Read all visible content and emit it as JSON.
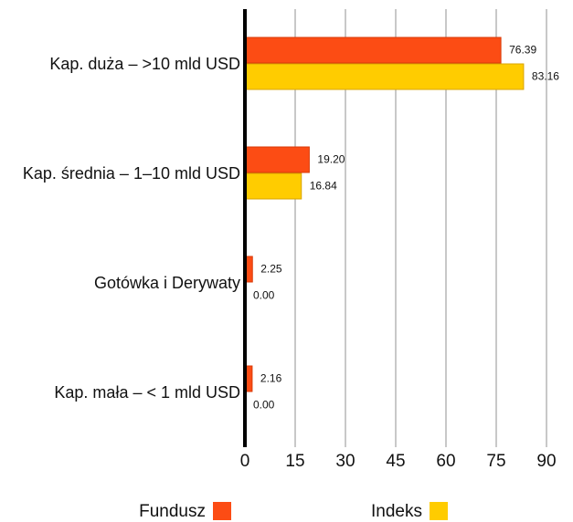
{
  "chart_data": {
    "type": "barh",
    "categories": [
      "Kap. duża – >10 mld USD",
      "Kap. średnia – 1–10 mld USD",
      "Gotówka i Derywaty",
      "Kap. mała – < 1 mld USD"
    ],
    "series": [
      {
        "name": "Fundusz",
        "color": "#fc4c14",
        "values": [
          76.39,
          19.2,
          2.25,
          2.16
        ],
        "value_labels": [
          "76.39",
          "19.20",
          "2.25",
          "2.16"
        ]
      },
      {
        "name": "Indeks",
        "color": "#ffcc00",
        "values": [
          83.16,
          16.84,
          0,
          0
        ],
        "value_labels": [
          "83.16",
          "16.84",
          "0.00",
          "0.00"
        ]
      }
    ],
    "xlim": [
      0,
      90
    ],
    "xticks": [
      0,
      15,
      30,
      45,
      60,
      75,
      90
    ],
    "grid": true
  }
}
